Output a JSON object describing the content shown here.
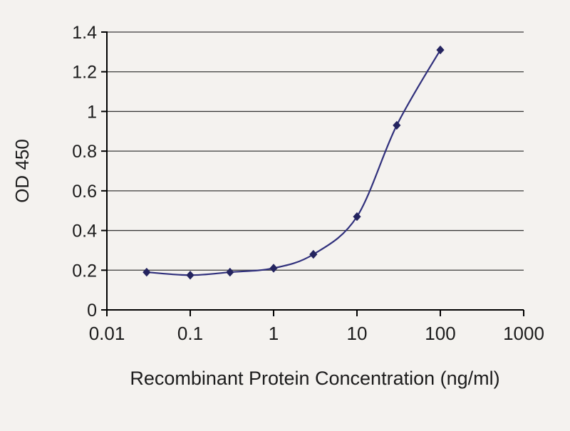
{
  "chart_data": {
    "type": "line",
    "title": "",
    "xlabel": "Recombinant Protein Concentration (ng/ml)",
    "ylabel": "OD 450",
    "x_scale": "log",
    "xlim": [
      0.01,
      1000
    ],
    "ylim": [
      0,
      1.4
    ],
    "x_ticks": [
      0.01,
      0.1,
      1,
      10,
      100,
      1000
    ],
    "x_tick_labels": [
      "0.01",
      "0.1",
      "1",
      "10",
      "100",
      "1000"
    ],
    "y_ticks": [
      0,
      0.2,
      0.4,
      0.6,
      0.8,
      1,
      1.2,
      1.4
    ],
    "y_tick_labels": [
      "0",
      "0.2",
      "0.4",
      "0.6",
      "0.8",
      "1",
      "1.2",
      "1.4"
    ],
    "grid": "horizontal",
    "legend": "none",
    "series": [
      {
        "name": "OD 450",
        "marker": "diamond",
        "color": "#30307c",
        "marker_color": "#24245f",
        "x": [
          0.03,
          0.1,
          0.3,
          1,
          3,
          10,
          30,
          100
        ],
        "y": [
          0.19,
          0.175,
          0.19,
          0.21,
          0.28,
          0.47,
          0.93,
          1.31
        ]
      }
    ],
    "colors": {
      "background": "#f4f2ef",
      "grid": "#3a3a3a",
      "axis": "#000000",
      "text": "#1c1c1c"
    }
  }
}
